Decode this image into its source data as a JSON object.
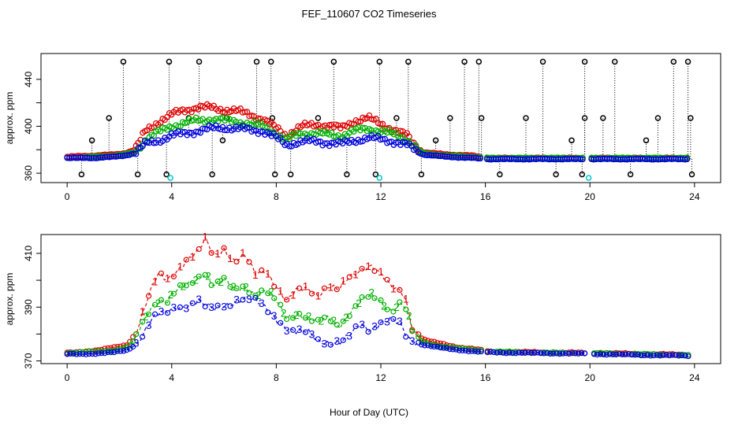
{
  "title": "FEF_110607  CO2 Timeseries",
  "xlabel": "Hour of Day (UTC)",
  "colors": {
    "s1": "#dd0000",
    "s2": "#00b000",
    "s3": "#0000dd",
    "spike": "#000000",
    "low": "#00cccc"
  },
  "chart_data": [
    {
      "type": "scatter",
      "panel": "top",
      "ylabel": "approx. ppm",
      "xlim": [
        -1,
        25
      ],
      "ylim": [
        352,
        462
      ],
      "xticks": [
        0,
        4,
        8,
        12,
        16,
        20,
        24
      ],
      "yticks": [
        360,
        400,
        440
      ],
      "yticks_minor": [
        380,
        420
      ],
      "spikes_high": [
        2.15,
        3.9,
        5.05,
        7.25,
        7.8,
        10.2,
        11.95,
        13.05,
        15.2,
        15.75,
        18.2,
        19.8,
        20.95,
        23.2,
        23.75
      ],
      "spikes_low": [
        0.55,
        2.7,
        3.8,
        5.55,
        7.95,
        8.55,
        10.7,
        11.8,
        13.55,
        16.55,
        18.7,
        19.7,
        21.55,
        23.9
      ],
      "spikes_mid": [
        1.6,
        4.65,
        6.1,
        7.85,
        9.6,
        12.6,
        14.65,
        15.85,
        17.55,
        19.8,
        20.5,
        22.6,
        23.85
      ],
      "spikes_small": [
        0.95,
        5.95,
        14.1,
        19.3,
        22.15
      ],
      "low_points": [
        3.95,
        11.95,
        19.95
      ],
      "series": [
        {
          "name": "1",
          "points": [
            [
              0,
              374
            ],
            [
              1,
              375
            ],
            [
              1.8,
              376
            ],
            [
              2.2,
              377
            ],
            [
              2.6,
              380
            ],
            [
              3,
              396
            ],
            [
              3.5,
              404
            ],
            [
              4,
              410
            ],
            [
              4.5,
              414
            ],
            [
              5,
              416
            ],
            [
              5.5,
              416
            ],
            [
              6,
              414
            ],
            [
              6.5,
              413
            ],
            [
              7,
              410
            ],
            [
              7.5,
              406
            ],
            [
              8,
              398
            ],
            [
              8.4,
              392
            ],
            [
              8.7,
              397
            ],
            [
              9,
              400
            ],
            [
              9.5,
              401
            ],
            [
              10,
              401
            ],
            [
              10.5,
              398
            ],
            [
              11,
              405
            ],
            [
              11.5,
              407
            ],
            [
              12,
              402
            ],
            [
              12.5,
              397
            ],
            [
              13,
              392
            ],
            [
              13.3,
              384
            ],
            [
              13.6,
              378
            ],
            [
              14.5,
              376
            ],
            [
              15.5,
              375
            ],
            [
              16,
              373
            ],
            [
              19.8,
              373
            ],
            [
              23.8,
              373
            ]
          ]
        },
        {
          "name": "2",
          "points": [
            [
              0,
              373
            ],
            [
              1,
              374
            ],
            [
              1.8,
              375
            ],
            [
              2.2,
              376
            ],
            [
              2.6,
              378
            ],
            [
              3,
              389
            ],
            [
              3.5,
              395
            ],
            [
              4,
              400
            ],
            [
              4.5,
              403
            ],
            [
              5,
              405
            ],
            [
              5.5,
              406
            ],
            [
              6,
              405
            ],
            [
              6.5,
              404
            ],
            [
              7,
              402
            ],
            [
              7.5,
              400
            ],
            [
              8,
              394
            ],
            [
              8.4,
              388
            ],
            [
              8.7,
              392
            ],
            [
              9,
              394
            ],
            [
              9.5,
              394
            ],
            [
              10,
              393
            ],
            [
              10.5,
              392
            ],
            [
              11,
              396
            ],
            [
              11.5,
              398
            ],
            [
              12,
              396
            ],
            [
              12.5,
              393
            ],
            [
              13,
              389
            ],
            [
              13.3,
              383
            ],
            [
              13.6,
              377
            ],
            [
              14.5,
              375
            ],
            [
              15.5,
              374
            ],
            [
              16,
              373
            ],
            [
              19.8,
              373
            ],
            [
              23.8,
              373
            ]
          ]
        },
        {
          "name": "3",
          "points": [
            [
              0,
              373
            ],
            [
              1,
              373
            ],
            [
              1.8,
              374
            ],
            [
              2.2,
              375
            ],
            [
              2.6,
              377
            ],
            [
              3,
              385
            ],
            [
              3.5,
              388
            ],
            [
              4,
              392
            ],
            [
              4.5,
              394
            ],
            [
              5,
              396
            ],
            [
              5.5,
              398
            ],
            [
              6,
              399
            ],
            [
              6.5,
              398
            ],
            [
              7,
              397
            ],
            [
              7.5,
              396
            ],
            [
              8,
              390
            ],
            [
              8.4,
              384
            ],
            [
              8.7,
              386
            ],
            [
              9,
              387
            ],
            [
              9.5,
              387
            ],
            [
              10,
              386
            ],
            [
              10.5,
              385
            ],
            [
              11,
              388
            ],
            [
              11.5,
              390
            ],
            [
              12,
              389
            ],
            [
              12.5,
              387
            ],
            [
              13,
              384
            ],
            [
              13.3,
              380
            ],
            [
              13.6,
              376
            ],
            [
              14.5,
              374
            ],
            [
              15.5,
              373
            ],
            [
              16,
              372
            ],
            [
              19.8,
              372
            ],
            [
              23.8,
              372
            ]
          ]
        }
      ]
    },
    {
      "type": "line",
      "panel": "bottom",
      "ylabel": "approx. ppm",
      "xlim": [
        -1,
        25
      ],
      "ylim": [
        369,
        417
      ],
      "xticks": [
        0,
        4,
        8,
        12,
        16,
        20,
        24
      ],
      "yticks": [
        370,
        390,
        410
      ],
      "yticks_minor": [
        380,
        400
      ],
      "gaps": [
        [
          15.85,
          16.0
        ],
        [
          19.8,
          20.05
        ]
      ],
      "series": [
        {
          "name": "1",
          "label": "1",
          "points": [
            [
              0,
              373
            ],
            [
              0.6,
              373.5
            ],
            [
              1.2,
              374
            ],
            [
              1.8,
              375
            ],
            [
              2.3,
              376
            ],
            [
              2.6,
              380
            ],
            [
              2.9,
              388
            ],
            [
              3.2,
              396
            ],
            [
              3.5,
              402
            ],
            [
              3.8,
              400
            ],
            [
              4.2,
              404
            ],
            [
              4.6,
              408
            ],
            [
              5,
              410
            ],
            [
              5.3,
              415
            ],
            [
              5.6,
              409
            ],
            [
              6,
              412
            ],
            [
              6.4,
              407
            ],
            [
              6.8,
              409
            ],
            [
              7.2,
              402
            ],
            [
              7.6,
              404
            ],
            [
              8,
              398
            ],
            [
              8.4,
              392
            ],
            [
              8.8,
              396
            ],
            [
              9.2,
              397
            ],
            [
              9.6,
              395
            ],
            [
              10,
              398
            ],
            [
              10.4,
              396
            ],
            [
              10.8,
              401
            ],
            [
              11.2,
              404
            ],
            [
              11.6,
              406
            ],
            [
              12,
              402
            ],
            [
              12.4,
              397
            ],
            [
              12.8,
              396
            ],
            [
              13,
              392
            ],
            [
              13.2,
              383
            ],
            [
              13.6,
              378
            ],
            [
              14,
              377
            ],
            [
              14.5,
              376
            ],
            [
              15,
              375
            ],
            [
              15.5,
              374.5
            ],
            [
              15.85,
              374
            ],
            [
              16,
              373.5
            ],
            [
              18,
              373.2
            ],
            [
              19.8,
              373
            ],
            [
              20.05,
              373
            ],
            [
              22,
              372.6
            ],
            [
              23.8,
              372.3
            ]
          ]
        },
        {
          "name": "2",
          "label": "2",
          "points": [
            [
              0,
              373
            ],
            [
              0.6,
              373.2
            ],
            [
              1.2,
              373.5
            ],
            [
              1.8,
              374
            ],
            [
              2.3,
              375
            ],
            [
              2.6,
              378
            ],
            [
              2.9,
              384
            ],
            [
              3.2,
              390
            ],
            [
              3.5,
              393
            ],
            [
              3.8,
              392
            ],
            [
              4.2,
              396
            ],
            [
              4.6,
              398
            ],
            [
              5,
              401
            ],
            [
              5.3,
              403
            ],
            [
              5.6,
              398
            ],
            [
              6,
              400
            ],
            [
              6.4,
              396
            ],
            [
              6.8,
              398
            ],
            [
              7.2,
              395
            ],
            [
              7.6,
              396
            ],
            [
              8,
              392
            ],
            [
              8.4,
              386
            ],
            [
              8.8,
              388
            ],
            [
              9.2,
              386
            ],
            [
              9.6,
              384
            ],
            [
              10,
              386
            ],
            [
              10.4,
              383
            ],
            [
              10.8,
              388
            ],
            [
              11.2,
              392
            ],
            [
              11.6,
              394
            ],
            [
              12,
              392
            ],
            [
              12.4,
              389
            ],
            [
              12.8,
              392
            ],
            [
              13,
              388
            ],
            [
              13.2,
              381
            ],
            [
              13.6,
              377
            ],
            [
              14,
              376
            ],
            [
              14.5,
              375.2
            ],
            [
              15,
              374.6
            ],
            [
              15.5,
              374.2
            ],
            [
              15.85,
              374
            ],
            [
              16,
              373.5
            ],
            [
              18,
              373.1
            ],
            [
              19.8,
              372.9
            ],
            [
              20.05,
              372.9
            ],
            [
              22,
              372.5
            ],
            [
              23.8,
              372.2
            ]
          ]
        },
        {
          "name": "3",
          "label": "3",
          "points": [
            [
              0,
              372.5
            ],
            [
              0.6,
              372.6
            ],
            [
              1.2,
              372.8
            ],
            [
              1.8,
              373.2
            ],
            [
              2.3,
              374
            ],
            [
              2.6,
              376
            ],
            [
              2.9,
              380
            ],
            [
              3.2,
              385
            ],
            [
              3.5,
              387
            ],
            [
              3.8,
              388
            ],
            [
              4.2,
              390
            ],
            [
              4.6,
              391
            ],
            [
              5,
              392
            ],
            [
              5.3,
              390
            ],
            [
              5.6,
              389
            ],
            [
              6,
              391
            ],
            [
              6.4,
              392
            ],
            [
              6.8,
              393
            ],
            [
              7.2,
              392
            ],
            [
              7.6,
              390
            ],
            [
              8,
              386
            ],
            [
              8.4,
              382
            ],
            [
              8.8,
              380
            ],
            [
              9.2,
              381
            ],
            [
              9.6,
              378
            ],
            [
              10,
              377
            ],
            [
              10.4,
              376
            ],
            [
              10.8,
              379
            ],
            [
              11.2,
              384
            ],
            [
              11.6,
              382
            ],
            [
              12,
              384
            ],
            [
              12.4,
              385
            ],
            [
              12.8,
              383
            ],
            [
              13,
              379
            ],
            [
              13.2,
              378
            ],
            [
              13.6,
              376
            ],
            [
              14,
              375.3
            ],
            [
              14.5,
              374.6
            ],
            [
              15,
              374.1
            ],
            [
              15.5,
              373.6
            ],
            [
              15.85,
              373.3
            ],
            [
              16,
              373.2
            ],
            [
              18,
              372.9
            ],
            [
              19.8,
              372.7
            ],
            [
              20.05,
              372.6
            ],
            [
              22,
              372.2
            ],
            [
              23.8,
              371.9
            ]
          ]
        }
      ]
    }
  ]
}
